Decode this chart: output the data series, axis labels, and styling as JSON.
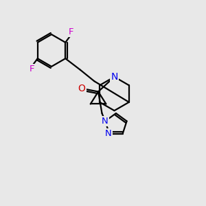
{
  "background_color": "#e8e8e8",
  "bond_color": "#000000",
  "atom_colors": {
    "F": "#cc00cc",
    "N": "#0000ee",
    "O": "#cc0000",
    "C": "#000000"
  },
  "figsize": [
    3.0,
    3.0
  ],
  "dpi": 100
}
